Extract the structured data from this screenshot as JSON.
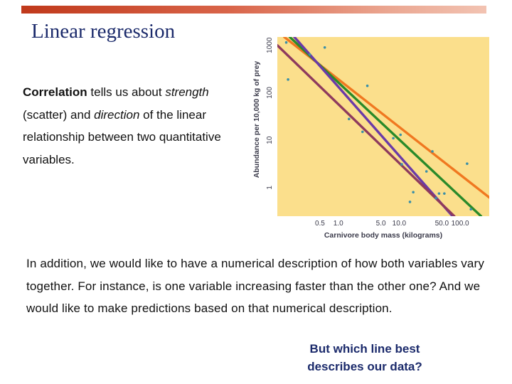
{
  "slide": {
    "title": "Linear regression",
    "intro": {
      "bold_term": "Correlation",
      "text1": " tells us about ",
      "strength_term": "strength",
      "text2": " (scatter) and ",
      "direction_term": "direction",
      "text3": " of the linear relationship between two quantitative variables."
    },
    "addition": "In addition, we would like to have a numerical description of how both variables vary together. For instance, is one variable increasing faster than the other one? And we would like to make predictions based on that numerical description.",
    "question": "But which line best describes our data?"
  },
  "colors": {
    "title": "#1b2a6b",
    "plot_bg": "#fbdf8c",
    "points": "#3a8fa8",
    "axis_text": "#3a3a4a"
  },
  "chart_data": {
    "type": "scatter",
    "xscale": "log",
    "yscale": "log",
    "xlabel": "Carnivore body mass (kilograms)",
    "ylabel": "Abundance per 10,000 kg of prey",
    "xlim": [
      0.1,
      300
    ],
    "ylim": [
      0.25,
      1500
    ],
    "xticks": [
      0.5,
      1.0,
      5.0,
      10.0,
      50.0,
      100.0
    ],
    "xtick_labels": [
      "0.5",
      "1.0",
      "5.0",
      "10.0",
      "50.0",
      "100.0"
    ],
    "yticks": [
      1,
      10,
      100,
      1000
    ],
    "ytick_labels": [
      "1",
      "10",
      "100",
      "1000"
    ],
    "points": [
      {
        "x": 0.14,
        "y": 1150
      },
      {
        "x": 0.15,
        "y": 190
      },
      {
        "x": 0.34,
        "y": 640
      },
      {
        "x": 0.6,
        "y": 900
      },
      {
        "x": 1.5,
        "y": 28
      },
      {
        "x": 2.5,
        "y": 15
      },
      {
        "x": 3.0,
        "y": 140
      },
      {
        "x": 8.0,
        "y": 11
      },
      {
        "x": 10.5,
        "y": 13
      },
      {
        "x": 11.0,
        "y": 3.1
      },
      {
        "x": 15.0,
        "y": 0.5
      },
      {
        "x": 17.0,
        "y": 0.8
      },
      {
        "x": 28.0,
        "y": 2.2
      },
      {
        "x": 35.0,
        "y": 5.8
      },
      {
        "x": 40.0,
        "y": 0.6
      },
      {
        "x": 45.0,
        "y": 0.75
      },
      {
        "x": 55.0,
        "y": 0.75
      },
      {
        "x": 130.0,
        "y": 3.2
      },
      {
        "x": 150.0,
        "y": 0.35
      }
    ],
    "lines": [
      {
        "color": "#f07820",
        "x1": 0.13,
        "y1": 1500,
        "x2": 300,
        "y2": 0.62
      },
      {
        "color": "#2a8a2a",
        "x1": 0.16,
        "y1": 1500,
        "x2": 220,
        "y2": 0.25
      },
      {
        "color": "#6a3aa8",
        "x1": 0.19,
        "y1": 1500,
        "x2": 75,
        "y2": 0.25
      },
      {
        "color": "#8e3a5e",
        "x1": 0.1,
        "y1": 1000,
        "x2": 80,
        "y2": 0.25
      }
    ]
  }
}
